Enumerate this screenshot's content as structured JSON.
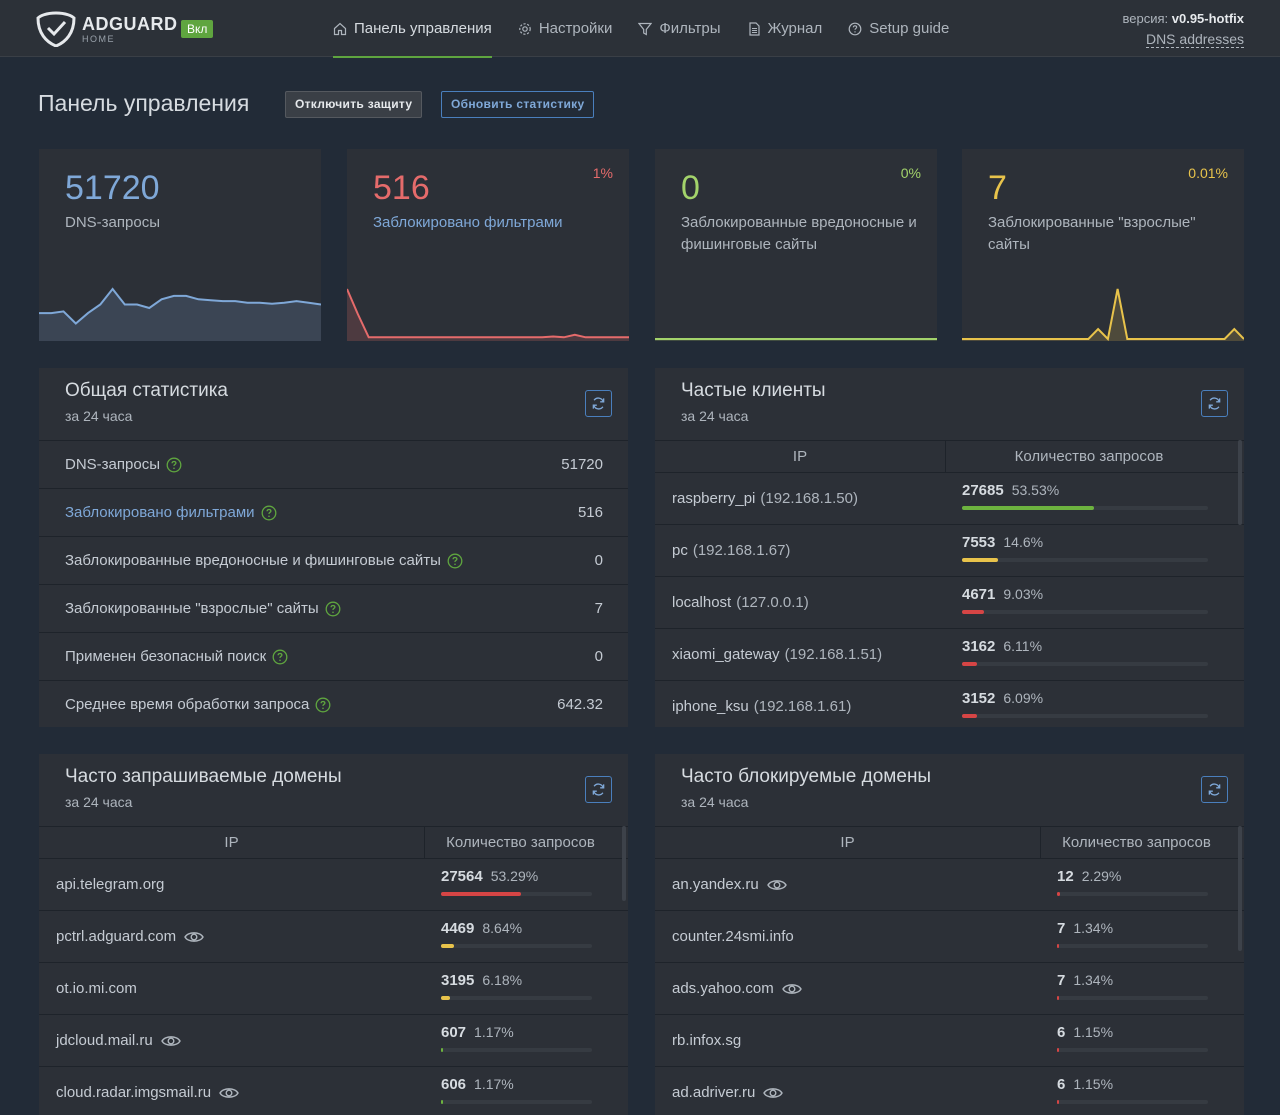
{
  "header": {
    "brand": "ADGUARD",
    "brand_sub": "HOME",
    "status_badge": "Вкл",
    "nav": [
      {
        "label": "Панель управления",
        "icon": "home-icon",
        "active": true
      },
      {
        "label": "Настройки",
        "icon": "gear-icon",
        "active": false
      },
      {
        "label": "Фильтры",
        "icon": "filter-icon",
        "active": false
      },
      {
        "label": "Журнал",
        "icon": "log-icon",
        "active": false
      },
      {
        "label": "Setup guide",
        "icon": "help-circle-icon",
        "active": false
      }
    ],
    "version_label": "версия:",
    "version_value": "v0.95-hotfix",
    "dns_link": "DNS addresses"
  },
  "page": {
    "title": "Панель управления",
    "btn_disable": "Отключить защиту",
    "btn_refresh": "Обновить статистику"
  },
  "stats": [
    {
      "value": "51720",
      "label": "DNS-запросы",
      "percent": "",
      "color": "#7fa8d8",
      "series": [
        30,
        30,
        32,
        18,
        30,
        40,
        58,
        40,
        40,
        36,
        46,
        50,
        50,
        46,
        45,
        44,
        44,
        42,
        42,
        41,
        42,
        44,
        42,
        40
      ]
    },
    {
      "value": "516",
      "label": "Заблокировано фильтрами",
      "percent": "1%",
      "color": "#e56b6b",
      "series": [
        60,
        30,
        2,
        2,
        2,
        2,
        2,
        2,
        2,
        2,
        2,
        2,
        2,
        2,
        2,
        2,
        2,
        2,
        2,
        3,
        2,
        5,
        2,
        2,
        2,
        2,
        2
      ]
    },
    {
      "value": "0",
      "label": "Заблокированные вредоносные и фишинговые сайты",
      "percent": "0%",
      "color": "#a3d36b",
      "series": [
        0,
        0,
        0,
        0,
        0,
        0,
        0,
        0,
        0,
        0,
        0,
        0,
        0,
        0,
        0,
        0,
        0,
        0,
        0,
        0,
        0,
        0,
        0,
        0
      ]
    },
    {
      "value": "7",
      "label": "Заблокированные \"взрослые\" сайты",
      "percent": "0.01%",
      "color": "#e8c34b",
      "series": [
        0,
        0,
        0,
        0,
        0,
        0,
        0,
        0,
        0,
        0,
        0,
        0,
        0,
        0,
        1,
        0,
        5,
        0,
        0,
        0,
        0,
        0,
        0,
        0,
        0,
        0,
        0,
        0,
        1,
        0
      ]
    }
  ],
  "general": {
    "title": "Общая статистика",
    "subtitle": "за 24 часа",
    "rows": [
      {
        "label": "DNS-запросы",
        "value": "51720",
        "blue": false
      },
      {
        "label": "Заблокировано фильтрами",
        "value": "516",
        "blue": true
      },
      {
        "label": "Заблокированные вредоносные и фишинговые сайты",
        "value": "0",
        "blue": false
      },
      {
        "label": "Заблокированные \"взрослые\" сайты",
        "value": "7",
        "blue": false
      },
      {
        "label": "Применен безопасный поиск",
        "value": "0",
        "blue": false
      },
      {
        "label": "Среднее время обработки запроса",
        "value": "642.32",
        "blue": false
      }
    ]
  },
  "clients": {
    "title": "Частые клиенты",
    "subtitle": "за 24 часа",
    "col_ip": "IP",
    "col_count": "Количество запросов",
    "rows": [
      {
        "name": "raspberry_pi",
        "addr": "(192.168.1.50)",
        "count": "27685",
        "percent": "53.53%",
        "fill": 0.5353,
        "color": "#6db33f"
      },
      {
        "name": "pc",
        "addr": "(192.168.1.67)",
        "count": "7553",
        "percent": "14.6%",
        "fill": 0.146,
        "color": "#e8c34b"
      },
      {
        "name": "localhost",
        "addr": "(127.0.0.1)",
        "count": "4671",
        "percent": "9.03%",
        "fill": 0.0903,
        "color": "#d64545"
      },
      {
        "name": "xiaomi_gateway",
        "addr": "(192.168.1.51)",
        "count": "3162",
        "percent": "6.11%",
        "fill": 0.0611,
        "color": "#d64545"
      },
      {
        "name": "iphone_ksu",
        "addr": "(192.168.1.61)",
        "count": "3152",
        "percent": "6.09%",
        "fill": 0.0609,
        "color": "#d64545"
      }
    ]
  },
  "queried": {
    "title": "Часто запрашиваемые домены",
    "subtitle": "за 24 часа",
    "col_ip": "IP",
    "col_count": "Количество запросов",
    "rows": [
      {
        "domain": "api.telegram.org",
        "eye": false,
        "count": "27564",
        "percent": "53.29%",
        "fill": 0.5329,
        "color": "#d64545"
      },
      {
        "domain": "pctrl.adguard.com",
        "eye": true,
        "count": "4469",
        "percent": "8.64%",
        "fill": 0.0864,
        "color": "#e8c34b"
      },
      {
        "domain": "ot.io.mi.com",
        "eye": false,
        "count": "3195",
        "percent": "6.18%",
        "fill": 0.0618,
        "color": "#e8c34b"
      },
      {
        "domain": "jdcloud.mail.ru",
        "eye": true,
        "count": "607",
        "percent": "1.17%",
        "fill": 0.0117,
        "color": "#6db33f"
      },
      {
        "domain": "cloud.radar.imgsmail.ru",
        "eye": true,
        "count": "606",
        "percent": "1.17%",
        "fill": 0.0117,
        "color": "#6db33f"
      }
    ]
  },
  "blocked": {
    "title": "Часто блокируемые домены",
    "subtitle": "за 24 часа",
    "col_ip": "IP",
    "col_count": "Количество запросов",
    "rows": [
      {
        "domain": "an.yandex.ru",
        "eye": true,
        "count": "12",
        "percent": "2.29%",
        "fill": 0.0229,
        "color": "#d64545"
      },
      {
        "domain": "counter.24smi.info",
        "eye": false,
        "count": "7",
        "percent": "1.34%",
        "fill": 0.0134,
        "color": "#d64545"
      },
      {
        "domain": "ads.yahoo.com",
        "eye": true,
        "count": "7",
        "percent": "1.34%",
        "fill": 0.0134,
        "color": "#d64545"
      },
      {
        "domain": "rb.infox.sg",
        "eye": false,
        "count": "6",
        "percent": "1.15%",
        "fill": 0.0115,
        "color": "#d64545"
      },
      {
        "domain": "ad.adriver.ru",
        "eye": true,
        "count": "6",
        "percent": "1.15%",
        "fill": 0.0115,
        "color": "#d64545"
      }
    ]
  }
}
